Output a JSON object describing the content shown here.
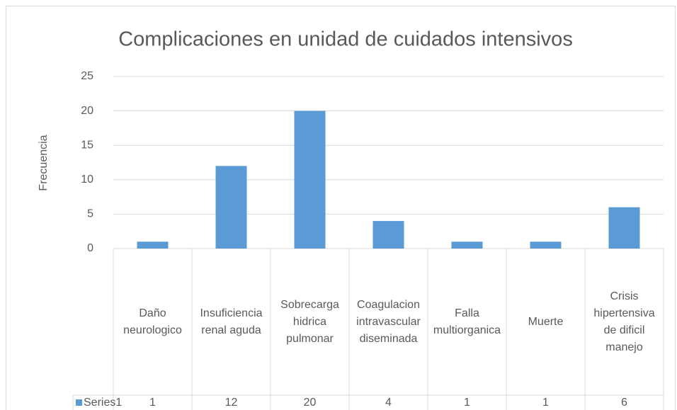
{
  "chart_data": {
    "type": "bar",
    "title": "Complicaciones en unidad de cuidados intensivos",
    "y_label": "Frecuencia",
    "categories": [
      "Daño neurologico",
      "Insuficiencia renal aguda",
      "Sobrecarga hidrica pulmonar",
      "Coagulacion intravascular diseminada",
      "Falla multiorganica",
      "Muerte",
      "Crisis hipertensiva de dificil manejo"
    ],
    "series": [
      {
        "name": "Series1",
        "color": "#5b9bd5",
        "values": [
          1,
          12,
          20,
          4,
          1,
          1,
          6
        ]
      }
    ],
    "ylim": [
      0,
      25
    ],
    "yticks": [
      0,
      5,
      10,
      15,
      20,
      25
    ],
    "grid": true,
    "data_table": true
  }
}
